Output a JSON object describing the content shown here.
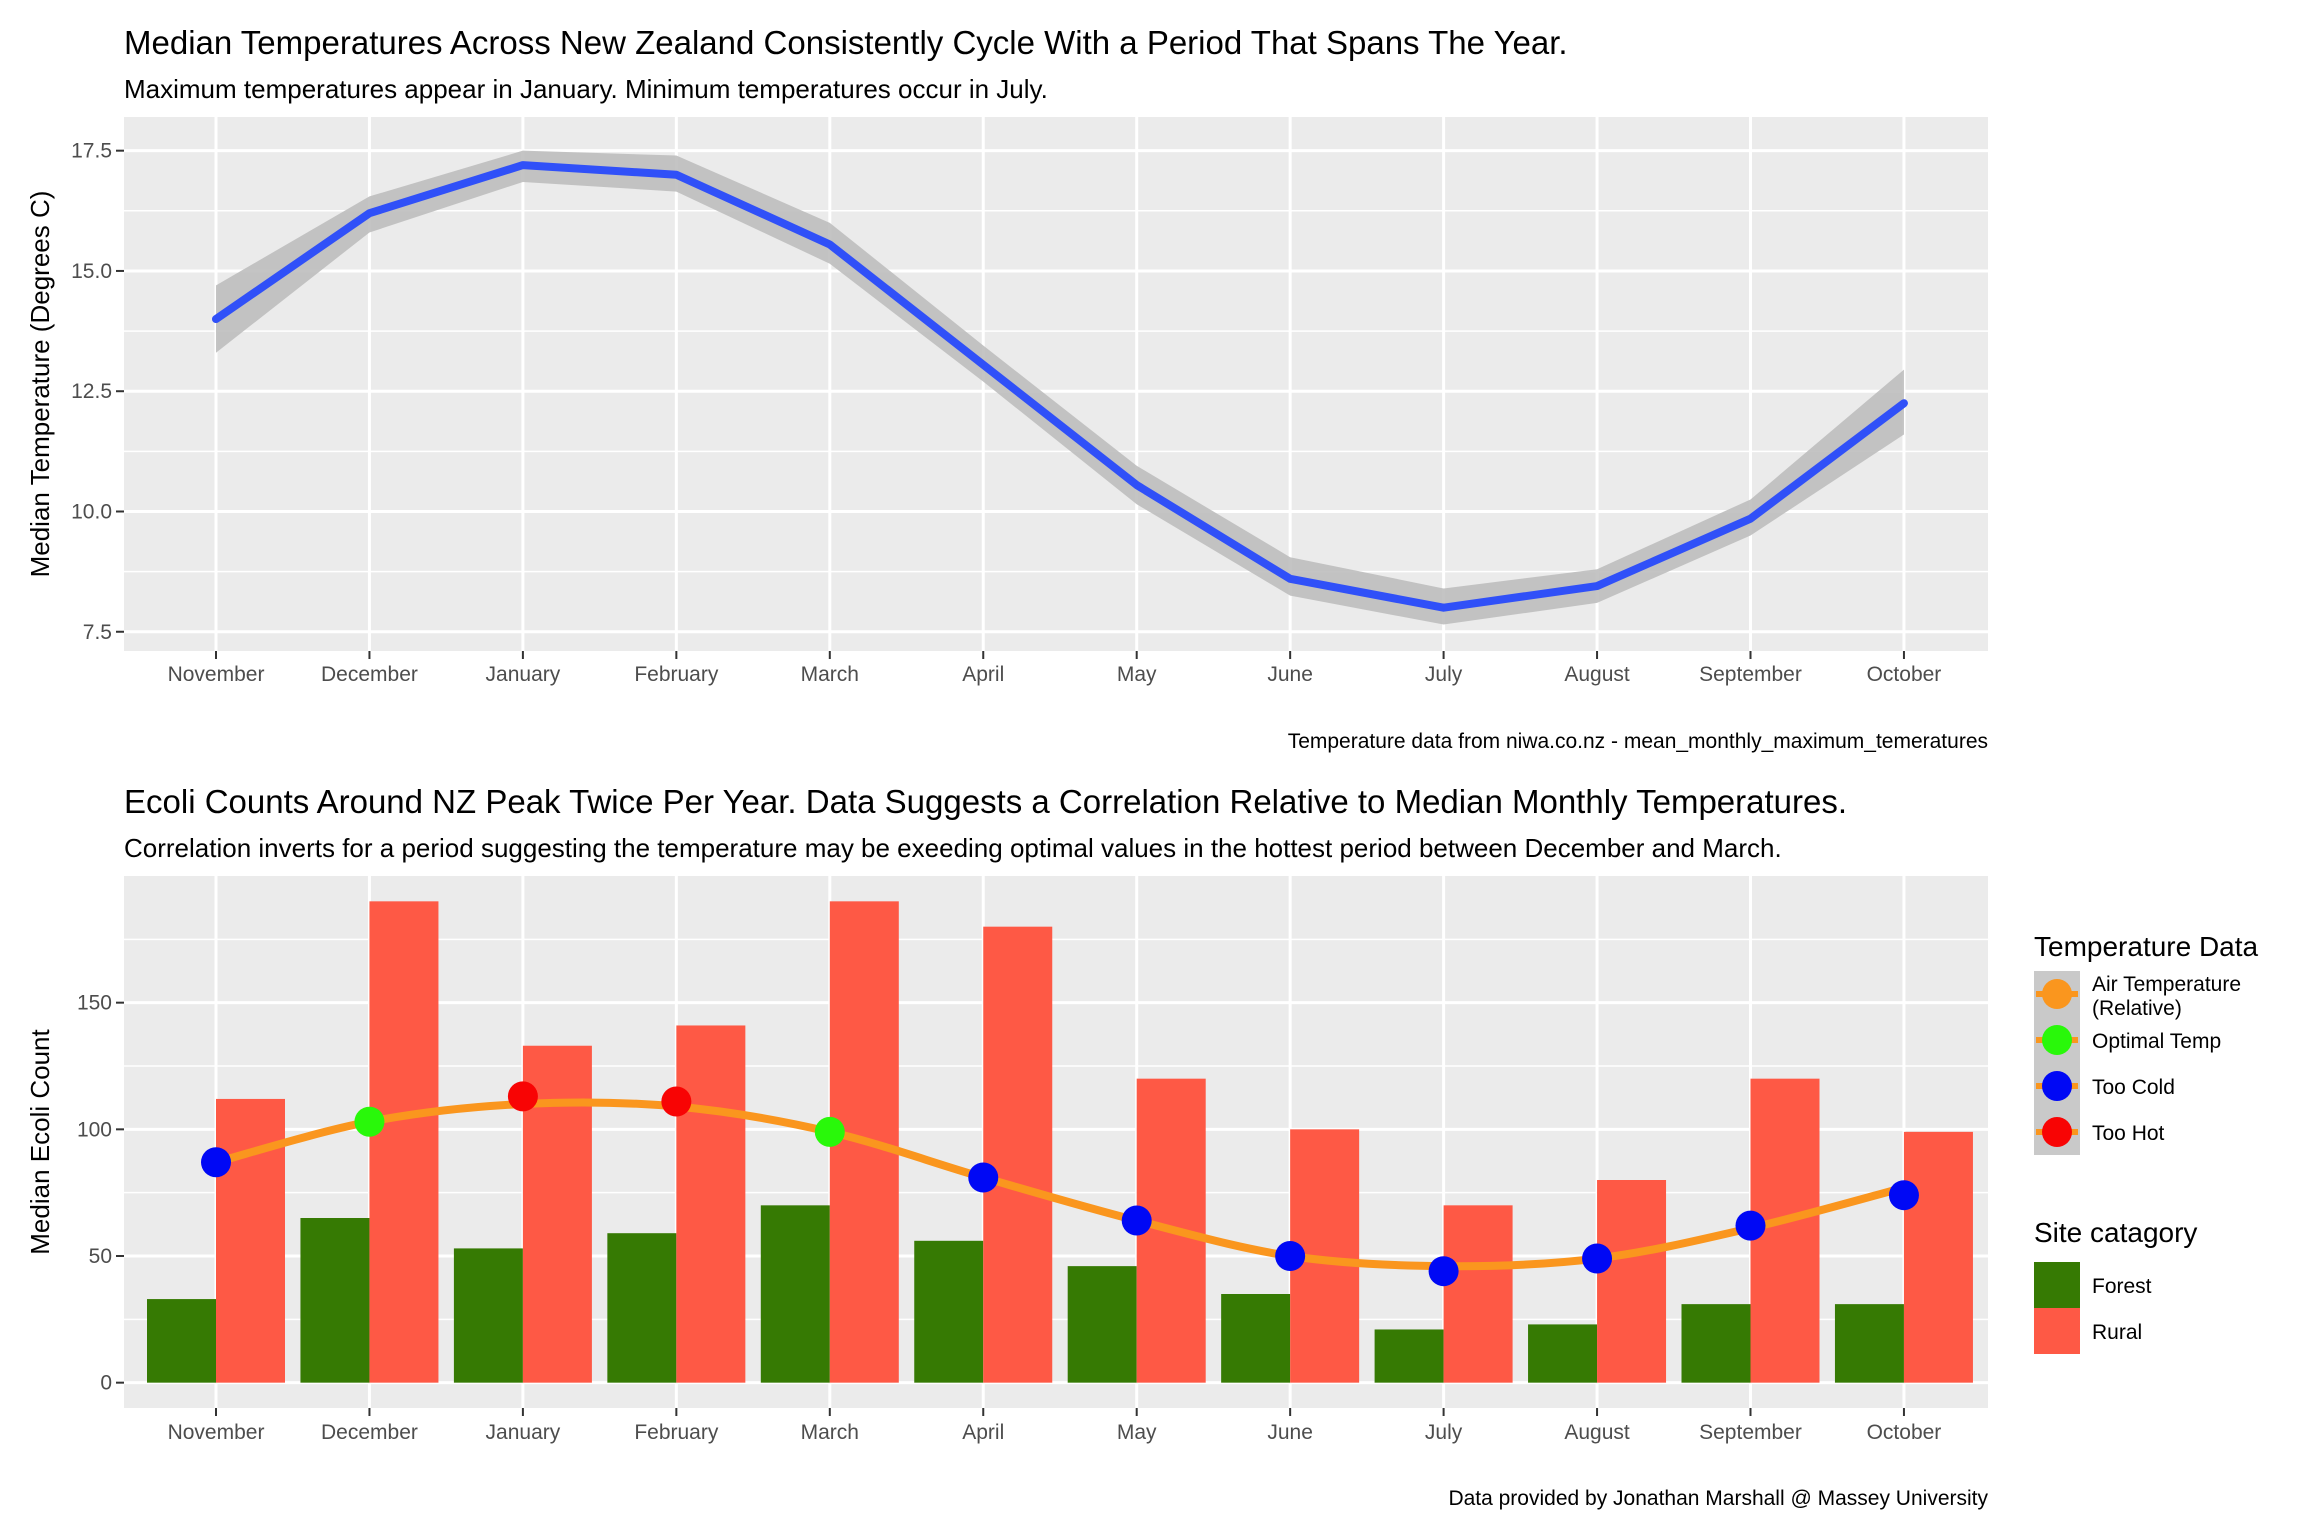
{
  "chart_data": [
    {
      "type": "line",
      "title": "Median Temperatures Across New Zealand Consistently Cycle With a Period That Spans The Year.",
      "subtitle": "Maximum temperatures appear in January. Minimum temperatures occur in July.",
      "xlabel": "",
      "ylabel": "Median Temperature (Degrees C)",
      "caption": "Temperature data from niwa.co.nz - mean_monthly_maximum_temeratures",
      "categories": [
        "November",
        "December",
        "January",
        "February",
        "March",
        "April",
        "May",
        "June",
        "July",
        "August",
        "September",
        "October"
      ],
      "series": [
        {
          "name": "Median Temperature",
          "color": "#3050f8",
          "values": [
            14.0,
            16.2,
            17.2,
            17.0,
            15.55,
            13.05,
            10.55,
            8.6,
            8.0,
            8.45,
            9.85,
            12.25
          ],
          "band_lower": [
            13.3,
            15.8,
            16.85,
            16.65,
            15.15,
            12.7,
            10.15,
            8.25,
            7.65,
            8.1,
            9.5,
            11.6
          ],
          "band_upper": [
            14.7,
            16.55,
            17.5,
            17.4,
            16.0,
            13.45,
            10.95,
            9.05,
            8.4,
            8.8,
            10.25,
            12.95
          ],
          "band_color": "#bebebe"
        }
      ],
      "ylim": [
        7.1,
        18.2
      ],
      "yticks": [
        7.5,
        10.0,
        12.5,
        15.0,
        17.5
      ],
      "ytick_labels": [
        "7.5",
        "10.0",
        "12.5",
        "15.0",
        "17.5"
      ],
      "grid": true
    },
    {
      "type": "bar",
      "title": "Ecoli Counts Around NZ Peak Twice Per Year. Data Suggests a Correlation Relative to Median Monthly Temperatures.",
      "subtitle": "Correlation inverts for a period suggesting the temperature may be exeeding optimal values in the hottest period between December and March.",
      "xlabel": "",
      "ylabel": "Median Ecoli Count",
      "caption": "Data provided by Jonathan Marshall @ Massey University",
      "categories": [
        "November",
        "December",
        "January",
        "February",
        "March",
        "April",
        "May",
        "June",
        "July",
        "August",
        "September",
        "October"
      ],
      "series": [
        {
          "name": "Forest",
          "color": "#367a03",
          "values": [
            33,
            65,
            53,
            59,
            70,
            56,
            46,
            35,
            21,
            23,
            31,
            31
          ]
        },
        {
          "name": "Rural",
          "color": "#fe5945",
          "values": [
            112,
            190,
            133,
            141,
            190,
            180,
            120,
            100,
            70,
            80,
            120,
            99
          ]
        }
      ],
      "line": {
        "name": "Air Temperature (Relative)",
        "color": "#fa961e",
        "values": [
          87,
          103,
          110,
          109,
          99,
          81,
          64,
          50,
          46,
          49,
          61,
          77
        ]
      },
      "points": {
        "values": [
          87,
          103,
          113,
          111,
          99,
          81,
          64,
          50,
          44,
          49,
          62,
          74
        ],
        "status": [
          "Too Cold",
          "Optimal Temp",
          "Too Hot",
          "Too Hot",
          "Optimal Temp",
          "Too Cold",
          "Too Cold",
          "Too Cold",
          "Too Cold",
          "Too Cold",
          "Too Cold",
          "Too Cold"
        ]
      },
      "ylim": [
        -10,
        200
      ],
      "yticks": [
        0,
        50,
        100,
        150
      ],
      "ytick_labels": [
        "0",
        "50",
        "100",
        "150"
      ],
      "grid": true,
      "legend_position": "right",
      "legends": [
        {
          "title": "Temperature Data",
          "items": [
            {
              "label_lines": [
                "Air Temperature",
                " (Relative)"
              ],
              "color": "#fa961e"
            },
            {
              "label_lines": [
                "Optimal Temp"
              ],
              "color": "#29f80a"
            },
            {
              "label_lines": [
                "Too Cold"
              ],
              "color": "#0008f5"
            },
            {
              "label_lines": [
                "Too Hot"
              ],
              "color": "#f80404"
            }
          ]
        },
        {
          "title": "Site catagory",
          "items": [
            {
              "label_lines": [
                "Forest"
              ],
              "color": "#367a03"
            },
            {
              "label_lines": [
                "Rural"
              ],
              "color": "#fe5945"
            }
          ]
        }
      ]
    }
  ]
}
